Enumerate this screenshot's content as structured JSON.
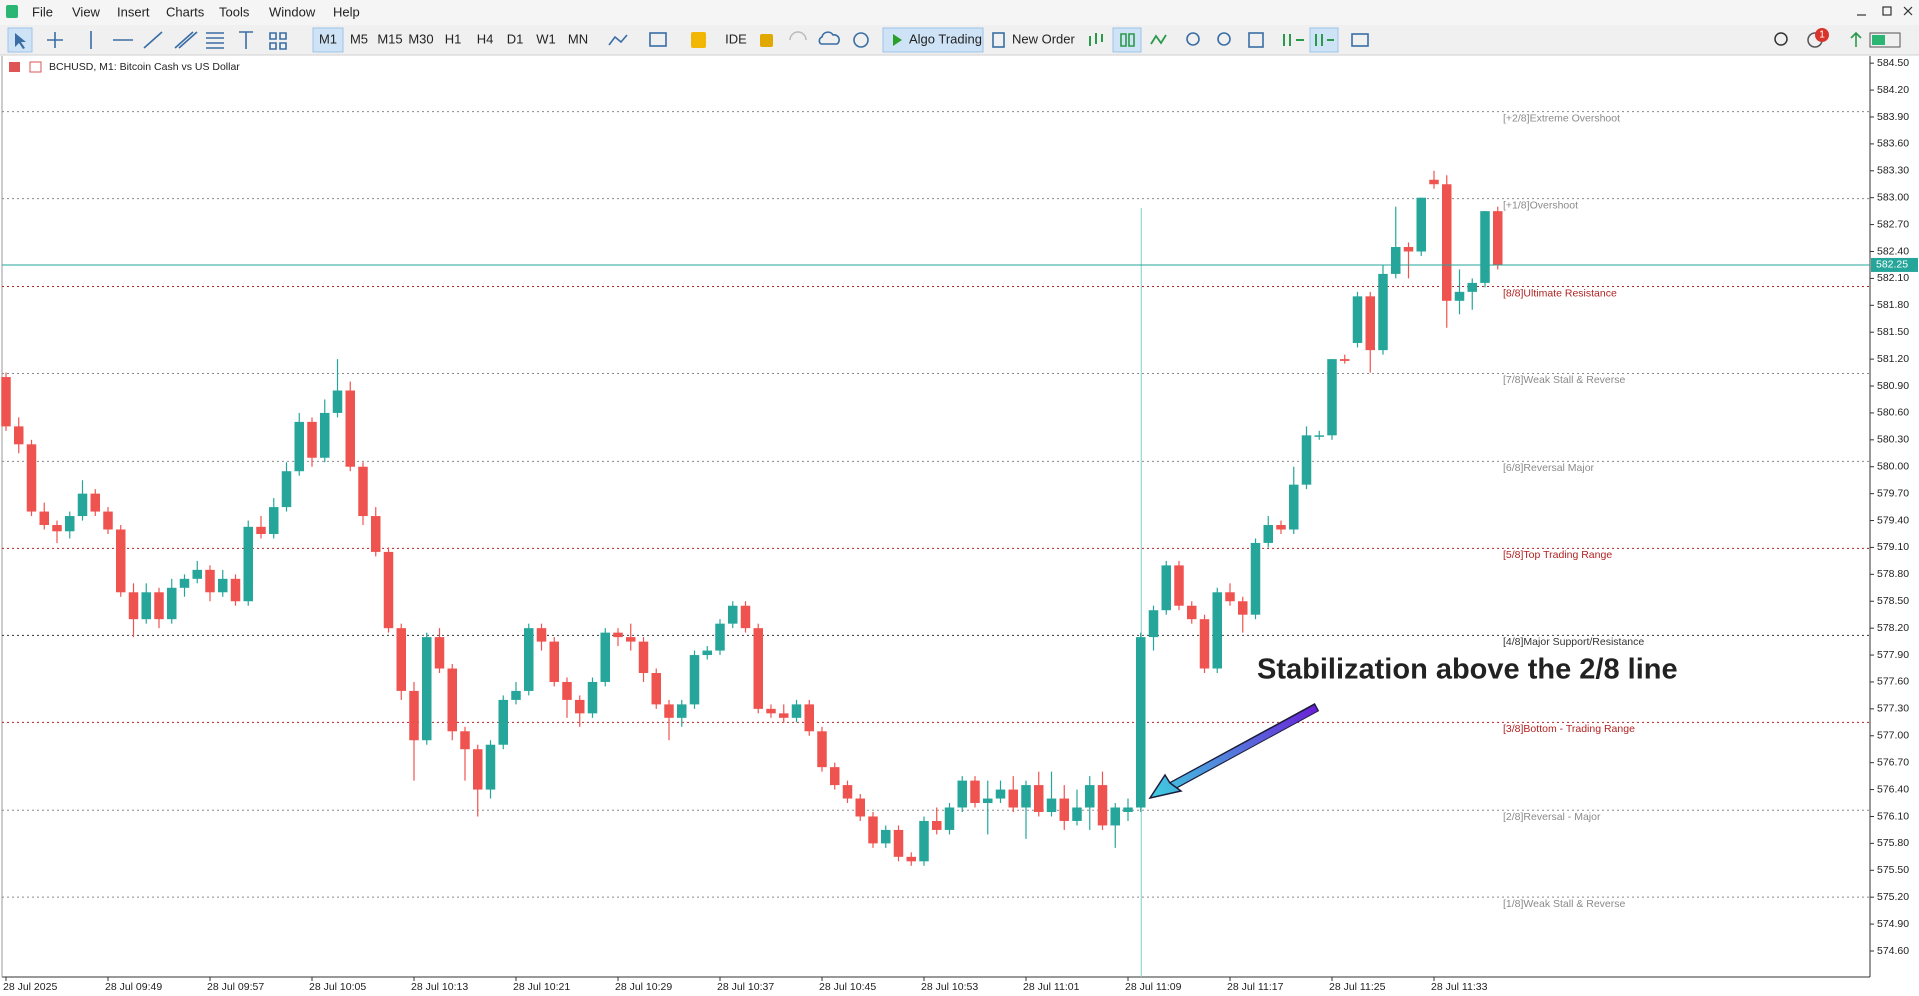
{
  "menu": [
    "File",
    "View",
    "Insert",
    "Charts",
    "Tools",
    "Window",
    "Help"
  ],
  "toolbar": {
    "timeframes": [
      "M1",
      "M5",
      "M15",
      "M30",
      "H1",
      "H4",
      "D1",
      "W1",
      "MN"
    ],
    "ide": "IDE",
    "algo": "Algo Trading",
    "new_order": "New Order",
    "notifications": 1
  },
  "chart_data": {
    "type": "candlestick",
    "title": "BCHUSD, M1:  Bitcoin Cash vs US Dollar",
    "annotation": "Stabilization above the 2/8 line",
    "up_color": "#26a69a",
    "down_color": "#ef5350",
    "ylim": [
      574.31,
      584.58
    ],
    "yticks": [
      {
        "value": 584.5,
        "label": "584.50"
      },
      {
        "value": 584.2,
        "label": "584.20"
      },
      {
        "value": 583.9,
        "label": "583.90"
      },
      {
        "value": 583.6,
        "label": "583.60"
      },
      {
        "value": 583.3,
        "label": "583.30"
      },
      {
        "value": 583.0,
        "label": "583.00"
      },
      {
        "value": 582.7,
        "label": "582.70"
      },
      {
        "value": 582.4,
        "label": "582.40"
      },
      {
        "value": 582.1,
        "label": "582.10"
      },
      {
        "value": 581.8,
        "label": "581.80"
      },
      {
        "value": 581.5,
        "label": "581.50"
      },
      {
        "value": 581.2,
        "label": "581.20"
      },
      {
        "value": 580.9,
        "label": "580.90"
      },
      {
        "value": 580.6,
        "label": "580.60"
      },
      {
        "value": 580.3,
        "label": "580.30"
      },
      {
        "value": 580.0,
        "label": "580.00"
      },
      {
        "value": 579.7,
        "label": "579.70"
      },
      {
        "value": 579.4,
        "label": "579.40"
      },
      {
        "value": 579.1,
        "label": "579.10"
      },
      {
        "value": 578.8,
        "label": "578.80"
      },
      {
        "value": 578.5,
        "label": "578.50"
      },
      {
        "value": 578.2,
        "label": "578.20"
      },
      {
        "value": 577.9,
        "label": "577.90"
      },
      {
        "value": 577.6,
        "label": "577.60"
      },
      {
        "value": 577.3,
        "label": "577.30"
      },
      {
        "value": 577.0,
        "label": "577.00"
      },
      {
        "value": 576.7,
        "label": "576.70"
      },
      {
        "value": 576.4,
        "label": "576.40"
      },
      {
        "value": 576.1,
        "label": "576.10"
      },
      {
        "value": 575.8,
        "label": "575.80"
      },
      {
        "value": 575.5,
        "label": "575.50"
      },
      {
        "value": 575.2,
        "label": "575.20"
      },
      {
        "value": 574.9,
        "label": "574.90"
      },
      {
        "value": 574.6,
        "label": "574.60"
      }
    ],
    "current_price": 582.25,
    "current_color": "#26a69a",
    "levels": [
      {
        "label": "[+2/8]Extreme Overshoot",
        "value": 583.96,
        "color": "#8a8a8a"
      },
      {
        "label": "[+1/8]Overshoot",
        "value": 582.99,
        "color": "#8a8a8a"
      },
      {
        "label": "[8/8]Ultimate Resistance",
        "value": 582.01,
        "color": "#b22222"
      },
      {
        "label": "[7/8]Weak Stall & Reverse",
        "value": 581.04,
        "color": "#8a8a8a"
      },
      {
        "label": "[6/8]Reversal Major",
        "value": 580.06,
        "color": "#8a8a8a"
      },
      {
        "label": "[5/8]Top Trading Range",
        "value": 579.09,
        "color": "#b22222"
      },
      {
        "label": "[4/8]Major Support/Resistance",
        "value": 578.12,
        "color": "#333333"
      },
      {
        "label": "[3/8]Bottom - Trading Range",
        "value": 577.15,
        "color": "#b22222"
      },
      {
        "label": "[2/8]Reversal - Major",
        "value": 576.17,
        "color": "#8a8a8a"
      },
      {
        "label": "[1/8]Weak Stall & Reverse",
        "value": 575.2,
        "color": "#8a8a8a"
      }
    ],
    "categories": [
      "28 Jul 2025",
      null,
      null,
      null,
      null,
      null,
      null,
      null,
      "28 Jul 09:49",
      null,
      null,
      null,
      null,
      null,
      null,
      null,
      "28 Jul 09:57",
      null,
      null,
      null,
      null,
      null,
      null,
      null,
      "28 Jul 10:05",
      null,
      null,
      null,
      null,
      null,
      null,
      null,
      "28 Jul 10:13",
      null,
      null,
      null,
      null,
      null,
      null,
      null,
      "28 Jul 10:21",
      null,
      null,
      null,
      null,
      null,
      null,
      null,
      "28 Jul 10:29",
      null,
      null,
      null,
      null,
      null,
      null,
      null,
      "28 Jul 10:37",
      null,
      null,
      null,
      null,
      null,
      null,
      null,
      "28 Jul 10:45",
      null,
      null,
      null,
      null,
      null,
      null,
      null,
      "28 Jul 10:53",
      null,
      null,
      null,
      null,
      null,
      null,
      null,
      "28 Jul 11:01",
      null,
      null,
      null,
      null,
      null,
      null,
      null,
      "28 Jul 11:09",
      null,
      null,
      null,
      null,
      null,
      null,
      null,
      "28 Jul 11:17",
      null,
      null,
      null,
      null,
      null,
      null,
      null,
      "28 Jul 11:25",
      null,
      null,
      null,
      null,
      null,
      null,
      null,
      "28 Jul 11:33",
      null,
      null,
      null,
      null,
      null
    ],
    "ohlc": [
      [
        581.0,
        581.05,
        580.4,
        580.45
      ],
      [
        580.45,
        580.55,
        580.15,
        580.25
      ],
      [
        580.25,
        580.3,
        579.45,
        579.5
      ],
      [
        579.5,
        579.6,
        579.3,
        579.35
      ],
      [
        579.35,
        579.4,
        579.15,
        579.28
      ],
      [
        579.28,
        579.5,
        579.2,
        579.45
      ],
      [
        579.45,
        579.85,
        579.4,
        579.7
      ],
      [
        579.7,
        579.75,
        579.45,
        579.5
      ],
      [
        579.5,
        579.55,
        579.25,
        579.3
      ],
      [
        579.3,
        579.35,
        578.55,
        578.6
      ],
      [
        578.6,
        578.7,
        578.1,
        578.3
      ],
      [
        578.3,
        578.7,
        578.25,
        578.6
      ],
      [
        578.6,
        578.65,
        578.2,
        578.3
      ],
      [
        578.3,
        578.75,
        578.25,
        578.65
      ],
      [
        578.65,
        578.8,
        578.55,
        578.75
      ],
      [
        578.75,
        578.95,
        578.7,
        578.85
      ],
      [
        578.85,
        578.9,
        578.5,
        578.6
      ],
      [
        578.6,
        578.85,
        578.55,
        578.75
      ],
      [
        578.75,
        578.8,
        578.45,
        578.5
      ],
      [
        578.5,
        579.4,
        578.45,
        579.33
      ],
      [
        579.33,
        579.45,
        579.2,
        579.25
      ],
      [
        579.25,
        579.65,
        579.2,
        579.55
      ],
      [
        579.55,
        580.05,
        579.5,
        579.95
      ],
      [
        579.95,
        580.6,
        579.9,
        580.5
      ],
      [
        580.5,
        580.55,
        580.0,
        580.1
      ],
      [
        580.1,
        580.75,
        580.05,
        580.6
      ],
      [
        580.6,
        581.2,
        580.55,
        580.85
      ],
      [
        580.85,
        580.95,
        579.95,
        580.0
      ],
      [
        580.0,
        580.05,
        579.35,
        579.45
      ],
      [
        579.45,
        579.55,
        579.0,
        579.05
      ],
      [
        579.05,
        579.1,
        578.15,
        578.2
      ],
      [
        578.2,
        578.25,
        577.4,
        577.5
      ],
      [
        577.5,
        577.6,
        576.5,
        576.95
      ],
      [
        576.95,
        578.15,
        576.9,
        578.1
      ],
      [
        578.1,
        578.2,
        577.7,
        577.75
      ],
      [
        577.75,
        577.8,
        576.95,
        577.05
      ],
      [
        577.05,
        577.1,
        576.5,
        576.85
      ],
      [
        576.85,
        576.9,
        576.1,
        576.4
      ],
      [
        576.4,
        576.95,
        576.3,
        576.9
      ],
      [
        576.9,
        577.45,
        576.85,
        577.4
      ],
      [
        577.4,
        577.6,
        577.35,
        577.5
      ],
      [
        577.5,
        578.25,
        577.45,
        578.2
      ],
      [
        578.2,
        578.25,
        577.95,
        578.05
      ],
      [
        578.05,
        578.1,
        577.55,
        577.6
      ],
      [
        577.6,
        577.65,
        577.2,
        577.4
      ],
      [
        577.4,
        577.45,
        577.1,
        577.25
      ],
      [
        577.25,
        577.65,
        577.2,
        577.6
      ],
      [
        577.6,
        578.2,
        577.55,
        578.15
      ],
      [
        578.15,
        578.2,
        578.0,
        578.1
      ],
      [
        578.1,
        578.25,
        577.95,
        578.05
      ],
      [
        578.05,
        578.1,
        577.6,
        577.7
      ],
      [
        577.7,
        577.75,
        577.3,
        577.35
      ],
      [
        577.35,
        577.4,
        576.95,
        577.2
      ],
      [
        577.2,
        577.4,
        577.1,
        577.35
      ],
      [
        577.35,
        577.95,
        577.3,
        577.9
      ],
      [
        577.9,
        578.0,
        577.85,
        577.95
      ],
      [
        577.95,
        578.3,
        577.9,
        578.25
      ],
      [
        578.25,
        578.5,
        578.2,
        578.45
      ],
      [
        578.45,
        578.5,
        578.15,
        578.2
      ],
      [
        578.2,
        578.25,
        577.25,
        577.3
      ],
      [
        577.3,
        577.35,
        577.2,
        577.25
      ],
      [
        577.25,
        577.35,
        577.15,
        577.2
      ],
      [
        577.2,
        577.4,
        577.15,
        577.35
      ],
      [
        577.35,
        577.4,
        577.0,
        577.05
      ],
      [
        577.05,
        577.1,
        576.6,
        576.65
      ],
      [
        576.65,
        576.7,
        576.4,
        576.45
      ],
      [
        576.45,
        576.5,
        576.25,
        576.3
      ],
      [
        576.3,
        576.35,
        576.05,
        576.1
      ],
      [
        576.1,
        576.15,
        575.75,
        575.8
      ],
      [
        575.8,
        576.0,
        575.75,
        575.95
      ],
      [
        575.95,
        576.0,
        575.6,
        575.65
      ],
      [
        575.65,
        575.7,
        575.55,
        575.6
      ],
      [
        575.6,
        576.1,
        575.55,
        576.05
      ],
      [
        576.05,
        576.2,
        575.9,
        575.95
      ],
      [
        575.95,
        576.25,
        575.9,
        576.2
      ],
      [
        576.2,
        576.55,
        576.15,
        576.5
      ],
      [
        576.5,
        576.55,
        576.2,
        576.25
      ],
      [
        576.25,
        576.5,
        575.9,
        576.3
      ],
      [
        576.3,
        576.5,
        576.25,
        576.4
      ],
      [
        576.4,
        576.55,
        576.15,
        576.2
      ],
      [
        576.2,
        576.5,
        575.85,
        576.45
      ],
      [
        576.45,
        576.6,
        576.1,
        576.15
      ],
      [
        576.15,
        576.6,
        576.1,
        576.3
      ],
      [
        576.3,
        576.45,
        575.95,
        576.05
      ],
      [
        576.05,
        576.4,
        576.0,
        576.2
      ],
      [
        576.2,
        576.55,
        575.95,
        576.45
      ],
      [
        576.45,
        576.6,
        575.95,
        576.0
      ],
      [
        576.0,
        576.25,
        575.75,
        576.2
      ],
      [
        576.15,
        576.3,
        576.05,
        576.2
      ],
      [
        576.2,
        578.15,
        576.15,
        578.1
      ],
      [
        578.1,
        578.45,
        577.95,
        578.4
      ],
      [
        578.4,
        578.95,
        578.35,
        578.9
      ],
      [
        578.9,
        578.95,
        578.4,
        578.45
      ],
      [
        578.45,
        578.5,
        578.25,
        578.3
      ],
      [
        578.3,
        578.35,
        577.7,
        577.75
      ],
      [
        577.75,
        578.65,
        577.7,
        578.6
      ],
      [
        578.6,
        578.7,
        578.45,
        578.5
      ],
      [
        578.5,
        578.55,
        578.15,
        578.35
      ],
      [
        578.35,
        579.2,
        578.3,
        579.15
      ],
      [
        579.15,
        579.45,
        579.1,
        579.35
      ],
      [
        579.35,
        579.4,
        579.25,
        579.3
      ],
      [
        579.3,
        580.0,
        579.25,
        579.8
      ],
      [
        579.8,
        580.45,
        579.75,
        580.35
      ],
      [
        580.35,
        580.4,
        580.3,
        580.35
      ],
      [
        580.35,
        581.2,
        580.3,
        581.2
      ],
      [
        581.2,
        581.25,
        581.15,
        581.18
      ],
      [
        581.38,
        581.95,
        581.33,
        581.9
      ],
      [
        581.9,
        581.95,
        581.05,
        581.3
      ],
      [
        581.3,
        582.25,
        581.25,
        582.15
      ],
      [
        582.15,
        582.9,
        582.1,
        582.45
      ],
      [
        582.45,
        582.5,
        582.1,
        582.4
      ],
      [
        582.4,
        583.0,
        582.35,
        583.0
      ],
      [
        583.2,
        583.3,
        583.1,
        583.15
      ],
      [
        583.15,
        583.25,
        581.55,
        581.85
      ],
      [
        581.85,
        582.2,
        581.7,
        581.95
      ],
      [
        581.95,
        582.1,
        581.75,
        582.05
      ],
      [
        582.05,
        582.85,
        582.0,
        582.85
      ],
      [
        582.85,
        582.9,
        582.2,
        582.25
      ]
    ]
  }
}
